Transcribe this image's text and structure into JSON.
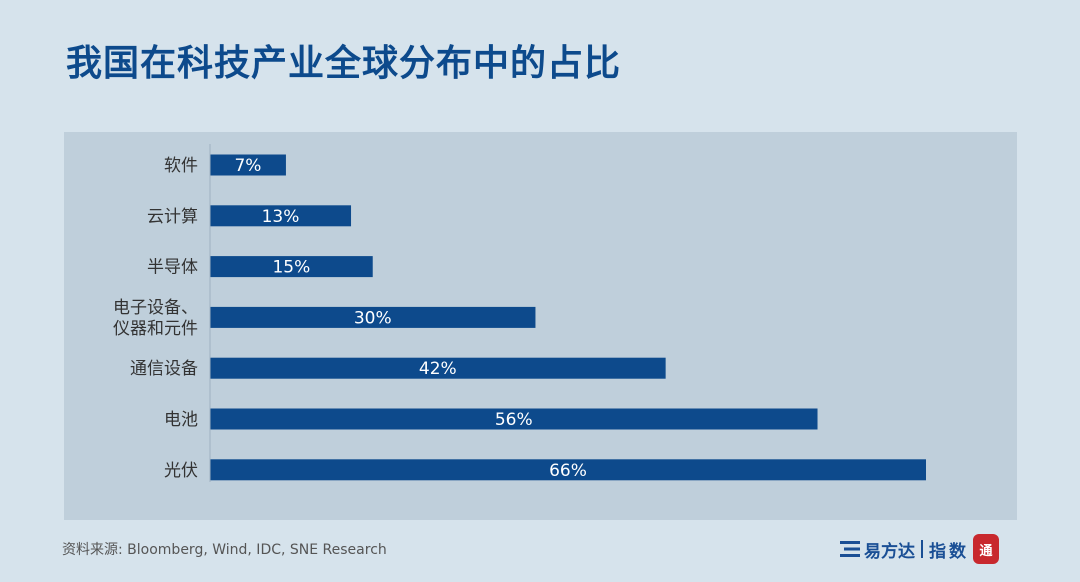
{
  "title": "我国在科技产业全球分布中的占比",
  "source": "资料来源: Bloomberg, Wind, IDC, SNE Research",
  "logo": {
    "brand": "易方达",
    "index": "指数",
    "seal": "通"
  },
  "colors": {
    "background": "#d6e3ec",
    "panel": "#bfcfdb",
    "bar": "#0d4a8c",
    "title": "#0d4a8c"
  },
  "chart_data": {
    "type": "bar",
    "orientation": "horizontal",
    "categories": [
      "软件",
      "云计算",
      "半导体",
      "电子设备、\n仪器和元件",
      "通信设备",
      "电池",
      "光伏"
    ],
    "values": [
      7,
      13,
      15,
      30,
      42,
      56,
      66
    ],
    "value_labels": [
      "7%",
      "13%",
      "15%",
      "30%",
      "42%",
      "56%",
      "66%"
    ],
    "xlim": [
      0,
      66
    ],
    "grid": false,
    "legend": "none"
  }
}
